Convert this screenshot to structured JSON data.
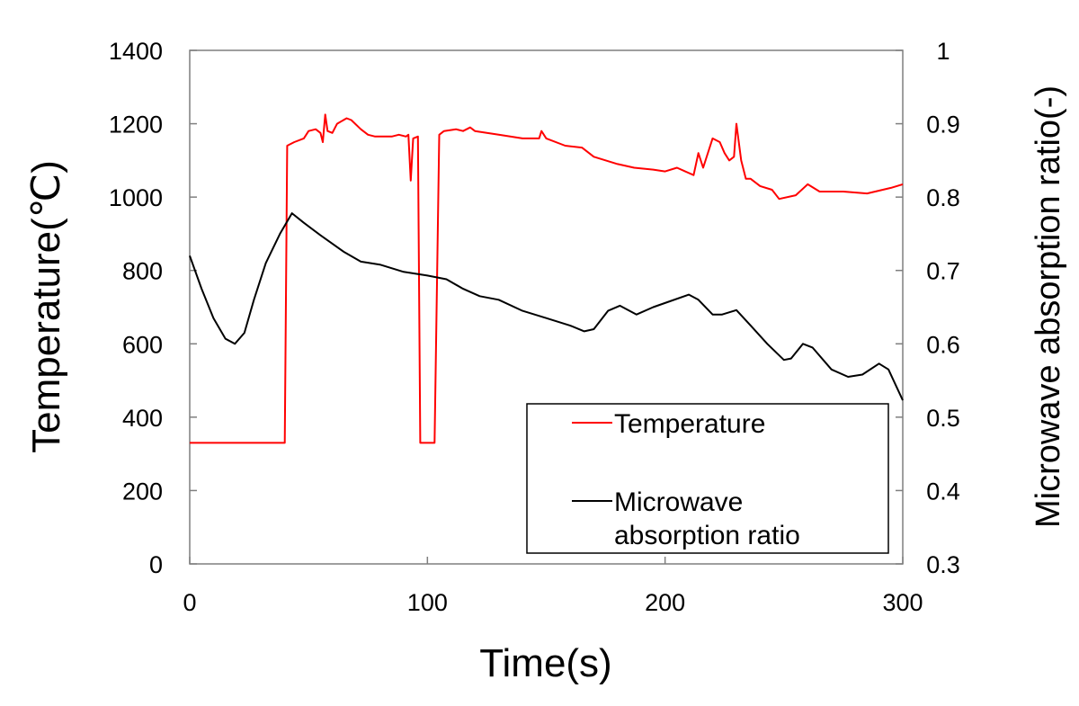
{
  "chart_data": {
    "type": "line",
    "xlabel": "Time(s)",
    "ylabel": "Temperature(℃)",
    "y2label": "Microwave absorption ratio(-)",
    "xlim": [
      0,
      300
    ],
    "ylim": [
      0,
      1400
    ],
    "y2lim": [
      0.3,
      1
    ],
    "xticks": [
      "0",
      "100",
      "200",
      "300"
    ],
    "yticks": [
      "0",
      "200",
      "400",
      "600",
      "800",
      "1000",
      "1200",
      "1400"
    ],
    "y2ticks": [
      "0.3",
      "0.4",
      "0.5",
      "0.6",
      "0.7",
      "0.8",
      "0.9",
      "1"
    ],
    "grid": false,
    "legend_position": "bottom-right",
    "series": [
      {
        "name": "Temperature",
        "axis": "left",
        "color": "#ff0000",
        "x": [
          0,
          40,
          41,
          44,
          48,
          50,
          53,
          55,
          56,
          57,
          58,
          60,
          62,
          66,
          68,
          72,
          75,
          78,
          85,
          88,
          91,
          92,
          93,
          94,
          96,
          97,
          103,
          105,
          107,
          112,
          115,
          118,
          120,
          130,
          140,
          147,
          148,
          150,
          158,
          165,
          170,
          180,
          187,
          195,
          200,
          205,
          212,
          214,
          216,
          220,
          223,
          225,
          227,
          229,
          230,
          232,
          234,
          236,
          240,
          245,
          248,
          255,
          260,
          265,
          275,
          285,
          295,
          300
        ],
        "y": [
          330,
          330,
          1140,
          1150,
          1160,
          1180,
          1185,
          1175,
          1150,
          1225,
          1180,
          1175,
          1200,
          1215,
          1210,
          1185,
          1170,
          1165,
          1165,
          1170,
          1165,
          1170,
          1045,
          1160,
          1165,
          330,
          330,
          1170,
          1180,
          1185,
          1180,
          1190,
          1180,
          1170,
          1160,
          1160,
          1180,
          1160,
          1140,
          1135,
          1110,
          1090,
          1080,
          1075,
          1070,
          1080,
          1060,
          1120,
          1080,
          1160,
          1150,
          1120,
          1100,
          1110,
          1200,
          1100,
          1050,
          1050,
          1030,
          1020,
          995,
          1005,
          1035,
          1015,
          1015,
          1010,
          1025,
          1035
        ]
      },
      {
        "name": "Microwave absorption ratio",
        "axis": "right",
        "color": "#000000",
        "x": [
          0,
          5,
          10,
          15,
          19,
          23,
          27,
          32,
          38,
          43,
          48,
          55,
          65,
          72,
          80,
          90,
          100,
          108,
          115,
          122,
          130,
          140,
          150,
          160,
          166,
          170,
          176,
          181,
          188,
          195,
          202,
          210,
          214,
          220,
          224,
          230,
          236,
          243,
          250,
          253,
          258,
          262,
          270,
          277,
          283,
          290,
          294,
          300
        ],
        "y": [
          0.72,
          0.675,
          0.635,
          0.607,
          0.6,
          0.615,
          0.66,
          0.71,
          0.75,
          0.778,
          0.765,
          0.748,
          0.725,
          0.712,
          0.708,
          0.698,
          0.693,
          0.688,
          0.675,
          0.665,
          0.66,
          0.645,
          0.635,
          0.625,
          0.617,
          0.62,
          0.645,
          0.652,
          0.64,
          0.65,
          0.658,
          0.667,
          0.66,
          0.64,
          0.64,
          0.646,
          0.625,
          0.6,
          0.578,
          0.58,
          0.6,
          0.595,
          0.565,
          0.555,
          0.558,
          0.573,
          0.565,
          0.523
        ]
      }
    ],
    "legend": {
      "entries": [
        "Temperature",
        "Microwave",
        "absorption ratio"
      ]
    }
  }
}
